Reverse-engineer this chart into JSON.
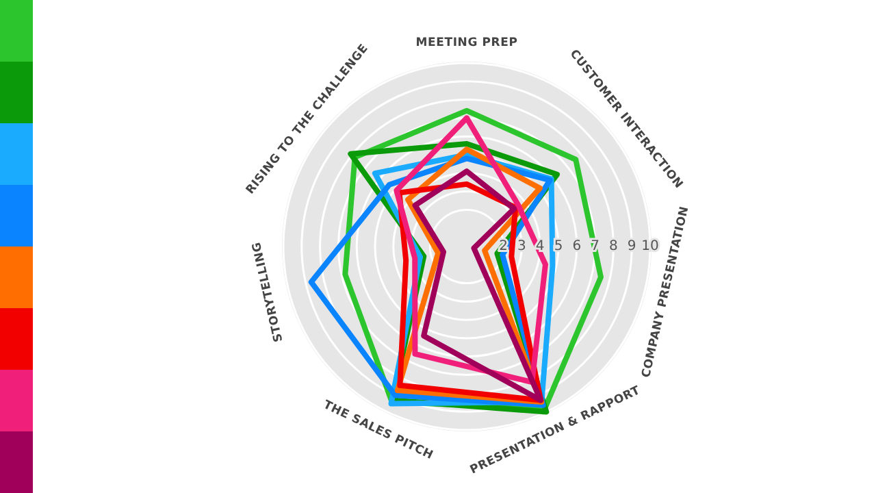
{
  "chart_data": {
    "type": "radar",
    "categories": [
      "MEETING PREP",
      "CUSTOMER INTERACTION",
      "COMPANY PRESENTATION",
      "PRESENTATION & RAPPORT",
      "THE SALES PITCH",
      "STORYTELLING",
      "RISING TO THE CHALLENGE"
    ],
    "series": [
      {
        "color": "#2dc52d",
        "values": [
          7.4,
          7.6,
          7.5,
          9.8,
          9.4,
          6.8,
          7.8
        ]
      },
      {
        "color": "#0a9a0a",
        "values": [
          5.6,
          6.3,
          1.7,
          10,
          9.3,
          2.4,
          8.1
        ]
      },
      {
        "color": "#1aabff",
        "values": [
          5.0,
          5.9,
          4.8,
          9.4,
          9.5,
          2.6,
          6.4
        ]
      },
      {
        "color": "#0a84ff",
        "values": [
          4.8,
          5.8,
          2.0,
          9.6,
          9.0,
          8.7,
          5.4
        ]
      },
      {
        "color": "#ff6e00",
        "values": [
          5.3,
          5.1,
          1.0,
          9.4,
          8.7,
          1.6,
          4.1
        ]
      },
      {
        "color": "#f20000",
        "values": [
          3.4,
          3.4,
          2.5,
          9.3,
          8.4,
          3.4,
          4.7
        ]
      },
      {
        "color": "#f0207a",
        "values": [
          7.0,
          3.6,
          4.4,
          8.2,
          6.5,
          2.9,
          4.9
        ]
      },
      {
        "color": "#a0005a",
        "values": [
          4.1,
          3.3,
          0.4,
          9.3,
          5.4,
          1.3,
          3.6
        ]
      }
    ],
    "ylim": [
      0,
      10
    ],
    "yticks": [
      2,
      3,
      4,
      5,
      6,
      7,
      8,
      9,
      10
    ],
    "grid": true,
    "legend": false
  }
}
